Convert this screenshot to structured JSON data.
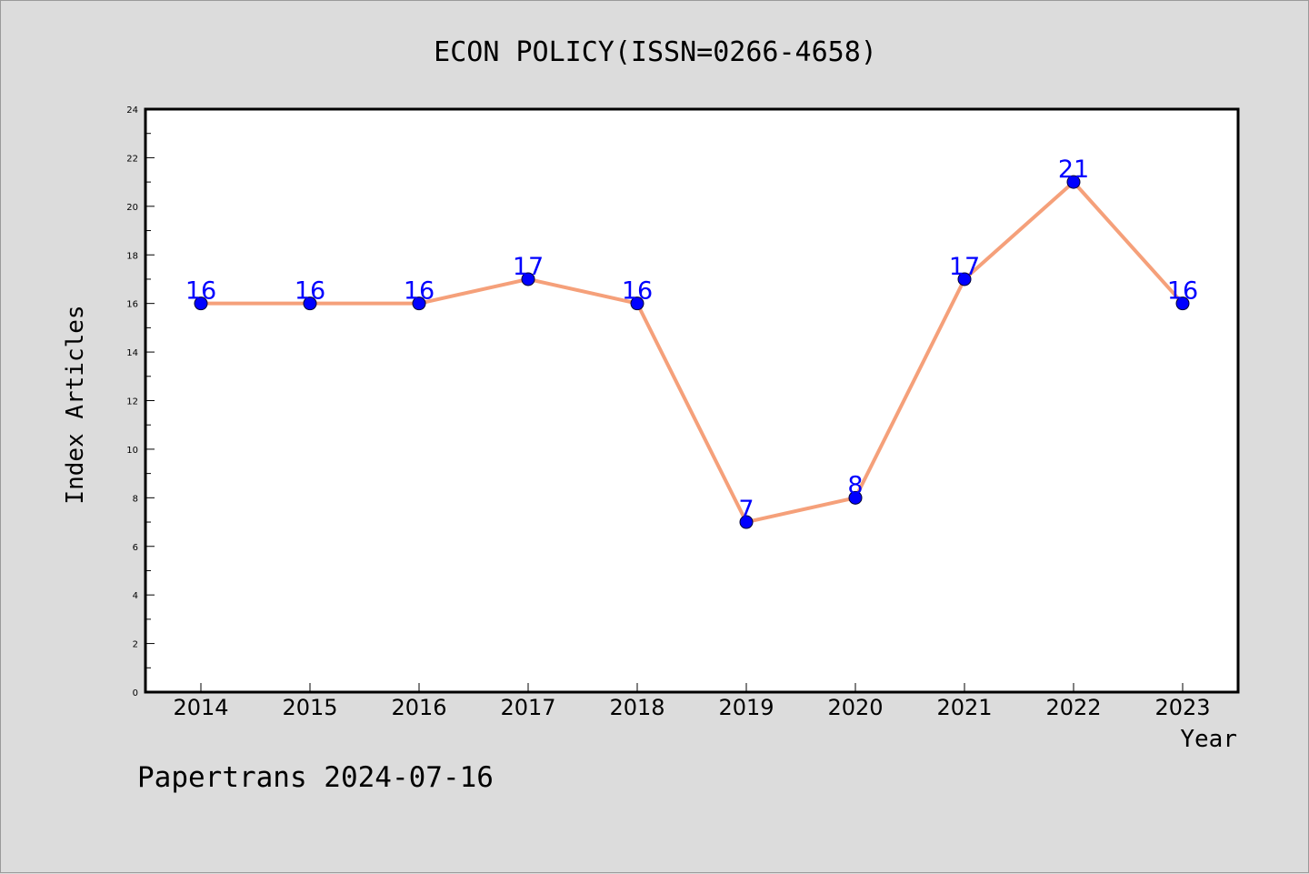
{
  "chart_data": {
    "type": "line",
    "title": "ECON POLICY(ISSN=0266-4658)",
    "xlabel": "Year",
    "ylabel": "Index Articles",
    "categories": [
      "2014",
      "2015",
      "2016",
      "2017",
      "2018",
      "2019",
      "2020",
      "2021",
      "2022",
      "2023"
    ],
    "series": [
      {
        "values": [
          16,
          16,
          16,
          17,
          16,
          7,
          8,
          17,
          21,
          16
        ]
      }
    ],
    "ylim": [
      0,
      24
    ],
    "yticks": [
      0,
      2,
      4,
      6,
      8,
      10,
      12,
      14,
      16,
      18,
      20,
      22,
      24
    ],
    "grid": false,
    "data_labels": true,
    "colors": {
      "line": "#f5a07a",
      "marker": "#0000ff",
      "label": "#0000ff",
      "background": "#dcdcdc",
      "plot_area": "#ffffff"
    }
  },
  "footer": {
    "text": "Papertrans 2024-07-16"
  }
}
